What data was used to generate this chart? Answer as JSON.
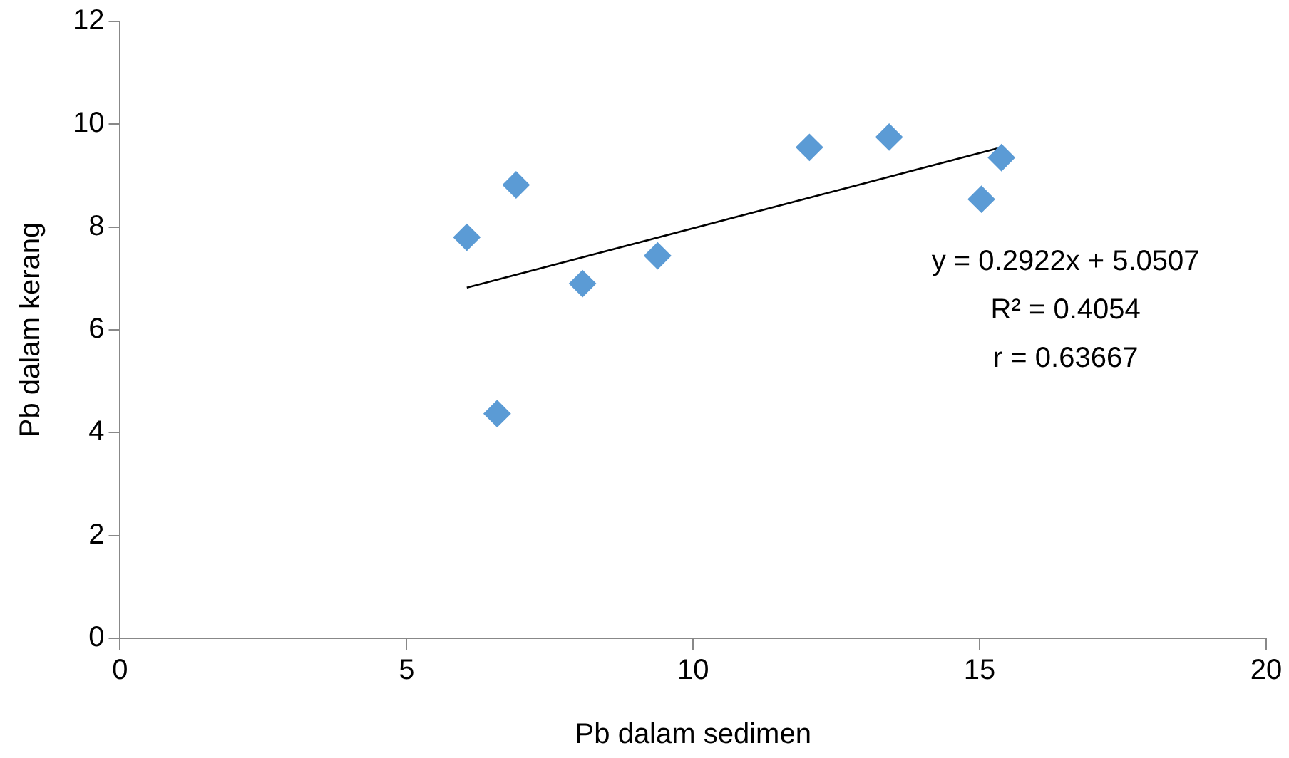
{
  "chart_data": {
    "type": "scatter",
    "xlabel": "Pb dalam sedimen",
    "ylabel": "Pb dalam kerang",
    "xlim": [
      0,
      20
    ],
    "xticks": [
      0,
      5,
      10,
      15,
      20
    ],
    "ylim": [
      0,
      12
    ],
    "yticks": [
      0,
      2,
      4,
      6,
      8,
      10,
      12
    ],
    "grid": false,
    "legend": false,
    "marker": "diamond",
    "series": [
      {
        "color": "#5b9bd5",
        "x": [
          6.05,
          6.91,
          6.58,
          8.07,
          9.38,
          12.03,
          13.42,
          15.03,
          15.38
        ],
        "values": [
          7.8,
          8.82,
          4.37,
          6.9,
          7.44,
          9.55,
          9.75,
          8.54,
          9.35
        ]
      },
      {
        "type": "line",
        "color": "#000000",
        "marker": "none",
        "x": [
          6.05,
          15.38
        ],
        "values": [
          6.82,
          9.55
        ]
      }
    ],
    "annotations": [
      "y = 0.2922x + 5.0507",
      "R² = 0.4054",
      "r = 0.63667"
    ]
  }
}
